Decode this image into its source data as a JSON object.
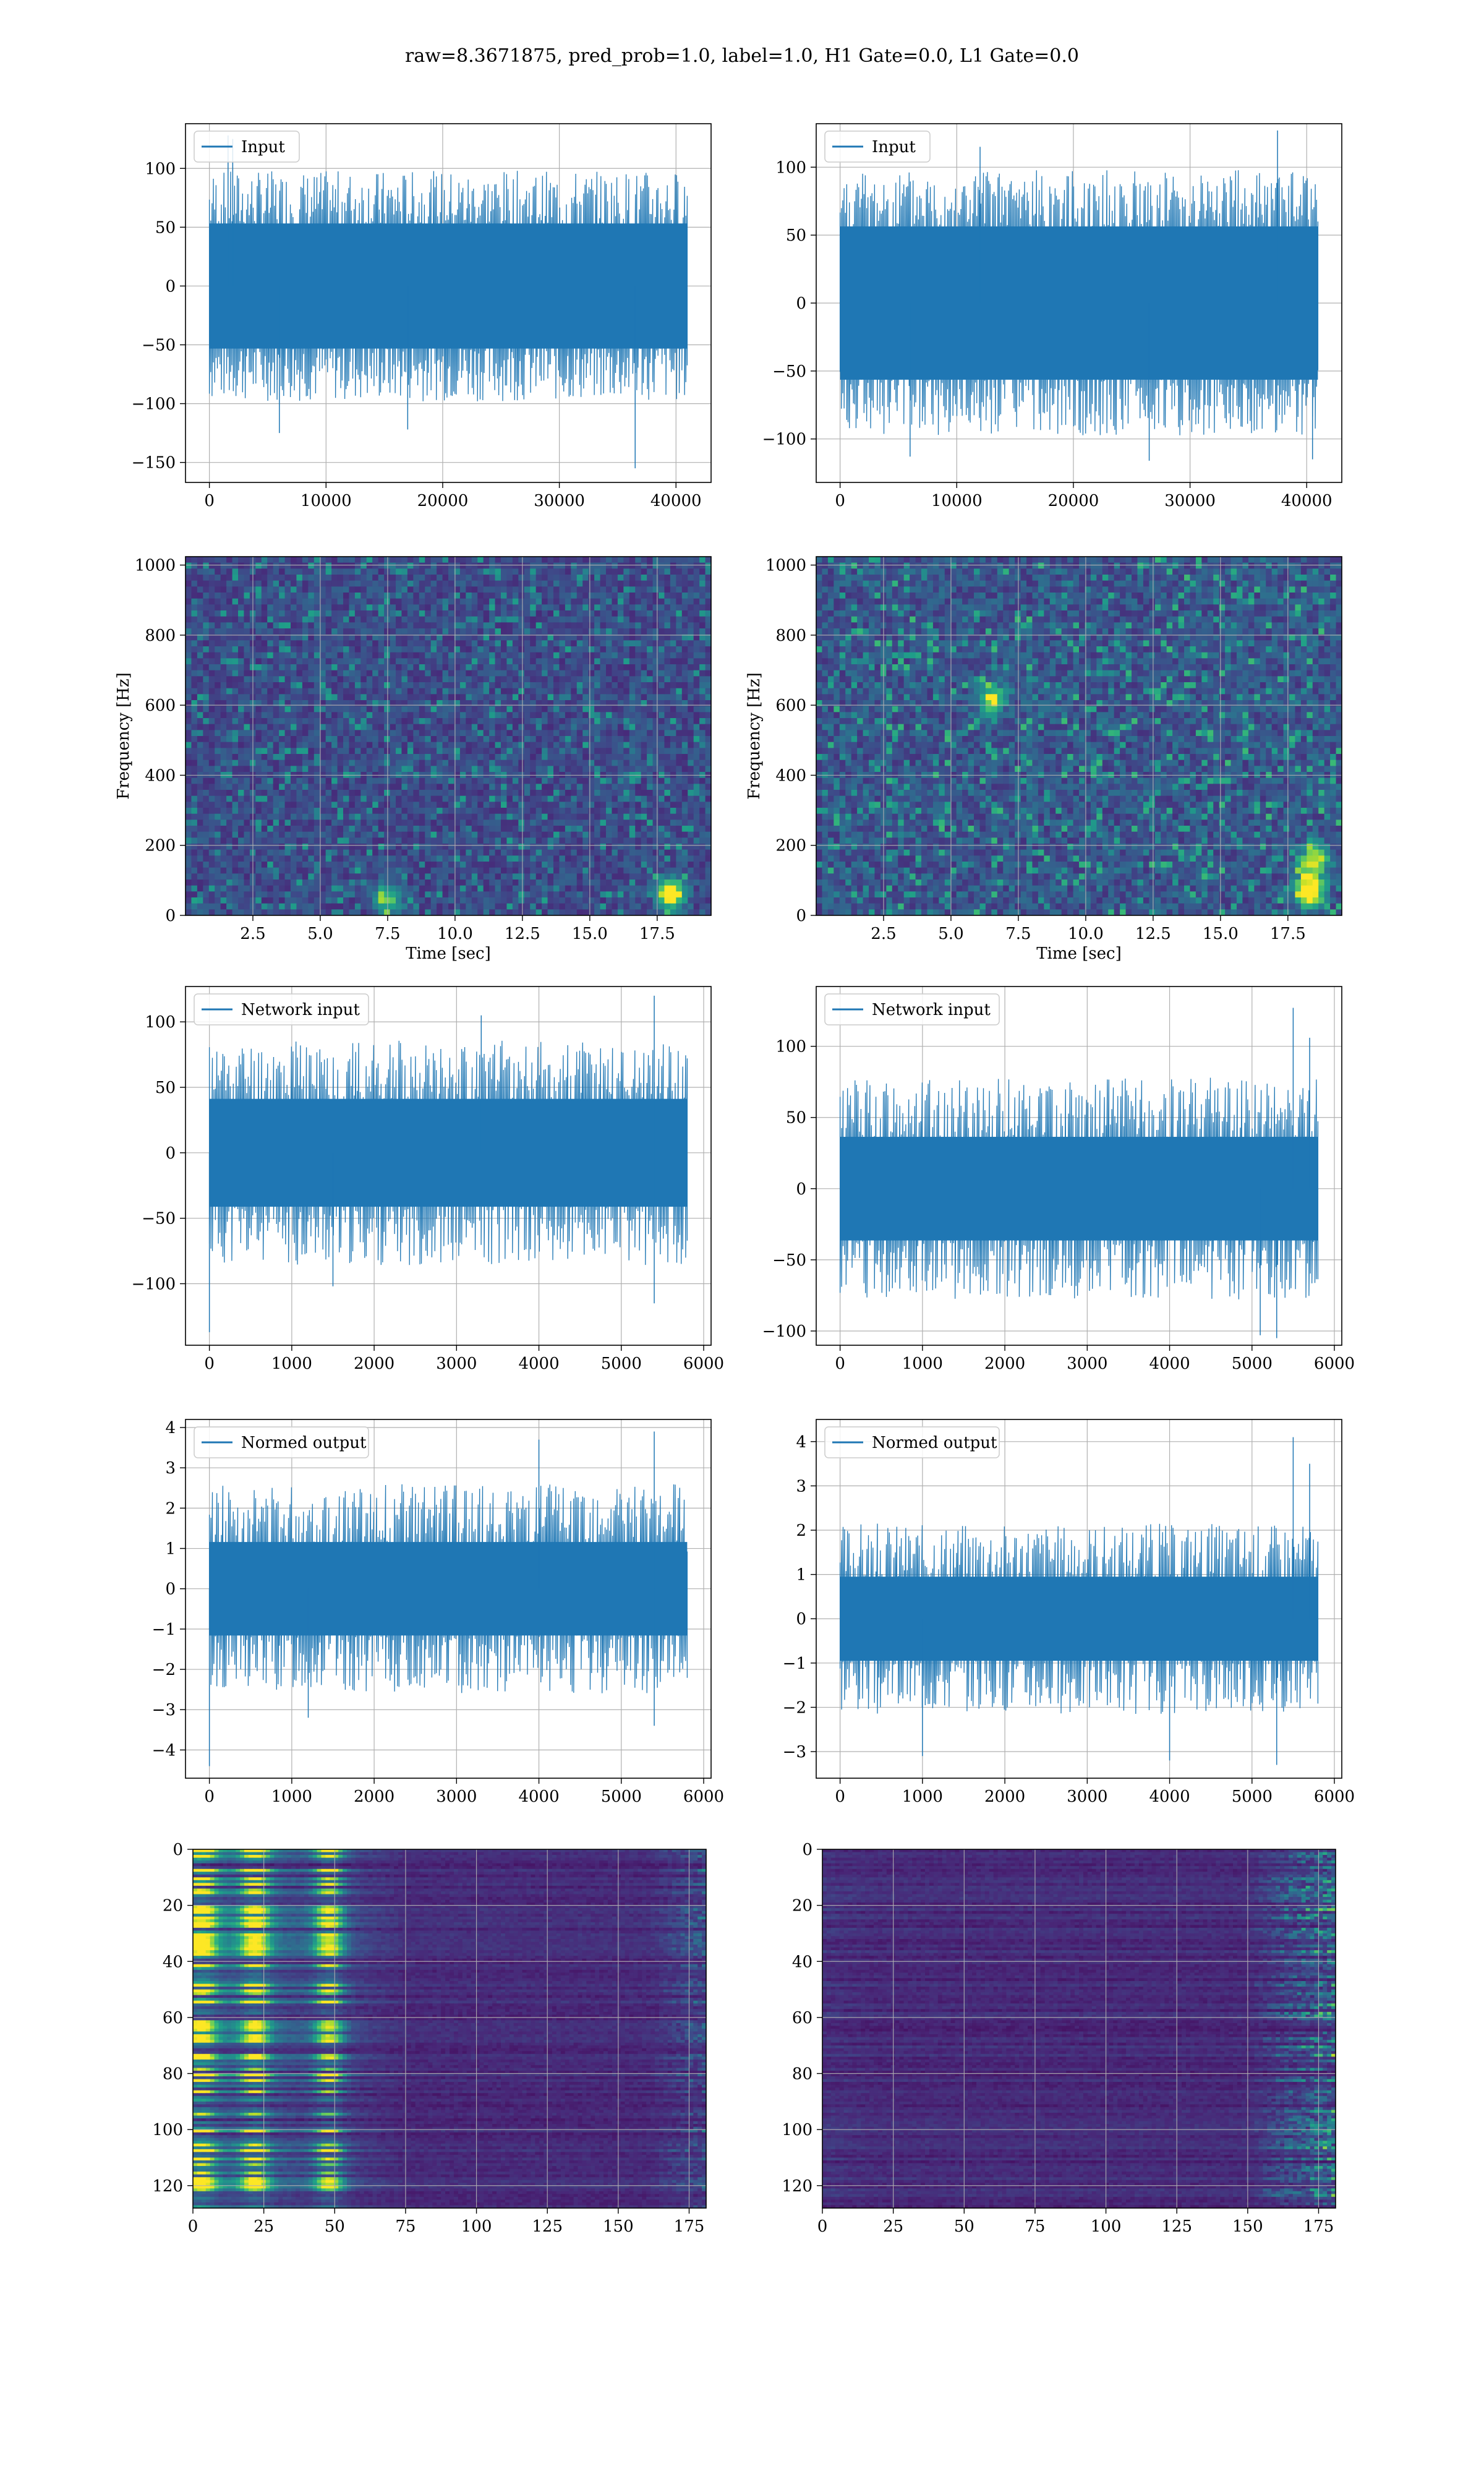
{
  "figure": {
    "suptitle": "raw=8.3671875, pred_prob=1.0, label=1.0, H1 Gate=0.0, L1 Gate=0.0"
  },
  "colors": {
    "line": "#1f77b4",
    "grid": "#b0b0b0",
    "viridis": [
      "#440154",
      "#482878",
      "#3e4a89",
      "#31688e",
      "#26828e",
      "#1f9e89",
      "#35b779",
      "#6ece58",
      "#b5de2b",
      "#fde725"
    ]
  },
  "chart_data": [
    {
      "id": "input-h1",
      "type": "line",
      "legend": "Input",
      "legend_loc": "upper-left",
      "grid": true,
      "x_range": [
        0,
        40960
      ],
      "xlim": [
        -2048,
        43008
      ],
      "ylim": [
        -167,
        138
      ],
      "xticks": [
        0,
        10000,
        20000,
        30000,
        40000
      ],
      "xtick_labels": [
        "0",
        "10000",
        "20000",
        "30000",
        "40000"
      ],
      "yticks": [
        -150,
        -100,
        -50,
        0,
        50,
        100
      ],
      "ytick_labels": [
        "−150",
        "−100",
        "−50",
        "0",
        "50",
        "100"
      ],
      "envelope": {
        "points": 360,
        "base_hi": 70,
        "base_lo": -70,
        "jitter": 28,
        "spikes_hi": [
          [
            1600,
            128
          ],
          [
            2000,
            125
          ]
        ],
        "spikes_lo": [
          [
            36500,
            -155
          ],
          [
            6000,
            -125
          ],
          [
            17000,
            -122
          ]
        ]
      }
    },
    {
      "id": "input-l1",
      "type": "line",
      "legend": "Input",
      "legend_loc": "upper-left",
      "grid": true,
      "x_range": [
        0,
        40960
      ],
      "xlim": [
        -2048,
        43008
      ],
      "ylim": [
        -132,
        132
      ],
      "xticks": [
        0,
        10000,
        20000,
        30000,
        40000
      ],
      "xtick_labels": [
        "0",
        "10000",
        "20000",
        "30000",
        "40000"
      ],
      "yticks": [
        -100,
        -50,
        0,
        50,
        100
      ],
      "ytick_labels": [
        "−100",
        "−50",
        "0",
        "50",
        "100"
      ],
      "envelope": {
        "points": 360,
        "base_hi": 72,
        "base_lo": -72,
        "jitter": 26,
        "spikes_hi": [
          [
            37500,
            127
          ],
          [
            12000,
            115
          ]
        ],
        "spikes_lo": [
          [
            40500,
            -115
          ],
          [
            6000,
            -113
          ],
          [
            26500,
            -116
          ]
        ]
      }
    },
    {
      "id": "spec-h1",
      "type": "heatmap",
      "colormap": "viridis",
      "grid": true,
      "xlabel": "Time [sec]",
      "ylabel": "Frequency [Hz]",
      "xlim": [
        0,
        19.5
      ],
      "ylim": [
        0,
        1024
      ],
      "xticks": [
        2.5,
        5.0,
        7.5,
        10.0,
        12.5,
        15.0,
        17.5
      ],
      "xtick_labels": [
        "2.5",
        "5.0",
        "7.5",
        "10.0",
        "12.5",
        "15.0",
        "17.5"
      ],
      "yticks": [
        0,
        200,
        400,
        600,
        800,
        1000
      ],
      "ytick_labels": [
        "0",
        "200",
        "400",
        "600",
        "800",
        "1000"
      ],
      "texture": {
        "cols": 90,
        "rows": 60,
        "base": 0.12,
        "noise": 0.28,
        "seed": 3,
        "hot": [
          [
            18.0,
            60,
            0.85
          ],
          [
            7.5,
            45,
            0.5
          ]
        ]
      }
    },
    {
      "id": "spec-l1",
      "type": "heatmap",
      "colormap": "viridis",
      "grid": true,
      "xlabel": "Time [sec]",
      "ylabel": "Frequency [Hz]",
      "xlim": [
        0,
        19.5
      ],
      "ylim": [
        0,
        1024
      ],
      "xticks": [
        2.5,
        5.0,
        7.5,
        10.0,
        12.5,
        15.0,
        17.5
      ],
      "xtick_labels": [
        "2.5",
        "5.0",
        "7.5",
        "10.0",
        "12.5",
        "15.0",
        "17.5"
      ],
      "yticks": [
        0,
        200,
        400,
        600,
        800,
        1000
      ],
      "ytick_labels": [
        "0",
        "200",
        "400",
        "600",
        "800",
        "1000"
      ],
      "texture": {
        "cols": 90,
        "rows": 60,
        "base": 0.14,
        "noise": 0.34,
        "seed": 11,
        "hot": [
          [
            18.3,
            70,
            0.95
          ],
          [
            18.5,
            160,
            0.7
          ],
          [
            6.5,
            620,
            0.55
          ]
        ]
      }
    },
    {
      "id": "net-h1",
      "type": "line",
      "legend": "Network input",
      "legend_loc": "upper-left",
      "grid": true,
      "x_range": [
        0,
        5800
      ],
      "xlim": [
        -290,
        6090
      ],
      "ylim": [
        -147,
        127
      ],
      "xticks": [
        0,
        1000,
        2000,
        3000,
        4000,
        5000,
        6000
      ],
      "xtick_labels": [
        "0",
        "1000",
        "2000",
        "3000",
        "4000",
        "5000",
        "6000"
      ],
      "yticks": [
        -100,
        -50,
        0,
        50,
        100
      ],
      "ytick_labels": [
        "−100",
        "−50",
        "0",
        "50",
        "100"
      ],
      "envelope": {
        "points": 320,
        "base_hi": 58,
        "base_lo": -58,
        "jitter": 28,
        "spikes_hi": [
          [
            5400,
            120
          ],
          [
            3300,
            105
          ]
        ],
        "spikes_lo": [
          [
            0,
            -137
          ],
          [
            5400,
            -115
          ],
          [
            1500,
            -102
          ]
        ]
      }
    },
    {
      "id": "net-l1",
      "type": "line",
      "legend": "Network input",
      "legend_loc": "upper-left",
      "grid": true,
      "x_range": [
        0,
        5800
      ],
      "xlim": [
        -290,
        6090
      ],
      "ylim": [
        -110,
        142
      ],
      "xticks": [
        0,
        1000,
        2000,
        3000,
        4000,
        5000,
        6000
      ],
      "xtick_labels": [
        "0",
        "1000",
        "2000",
        "3000",
        "4000",
        "5000",
        "6000"
      ],
      "yticks": [
        -100,
        -50,
        0,
        50,
        100
      ],
      "ytick_labels": [
        "−100",
        "−50",
        "0",
        "50",
        "100"
      ],
      "envelope": {
        "points": 320,
        "base_hi": 52,
        "base_lo": -52,
        "jitter": 26,
        "spikes_hi": [
          [
            5500,
            127
          ],
          [
            5700,
            106
          ]
        ],
        "spikes_lo": [
          [
            5300,
            -105
          ],
          [
            5100,
            -103
          ]
        ]
      }
    },
    {
      "id": "norm-h1",
      "type": "line",
      "legend": "Normed output",
      "legend_loc": "upper-left",
      "grid": true,
      "x_range": [
        0,
        5800
      ],
      "xlim": [
        -290,
        6090
      ],
      "ylim": [
        -4.7,
        4.2
      ],
      "xticks": [
        0,
        1000,
        2000,
        3000,
        4000,
        5000,
        6000
      ],
      "xtick_labels": [
        "0",
        "1000",
        "2000",
        "3000",
        "4000",
        "5000",
        "6000"
      ],
      "yticks": [
        -4,
        -3,
        -2,
        -1,
        0,
        1,
        2,
        3,
        4
      ],
      "ytick_labels": [
        "−4",
        "−3",
        "−2",
        "−1",
        "0",
        "1",
        "2",
        "3",
        "4"
      ],
      "envelope": {
        "points": 320,
        "base_hi": 1.7,
        "base_lo": -1.7,
        "jitter": 0.9,
        "spikes_hi": [
          [
            5400,
            3.9
          ],
          [
            4000,
            3.7
          ]
        ],
        "spikes_lo": [
          [
            0,
            -4.4
          ],
          [
            5400,
            -3.4
          ],
          [
            1200,
            -3.2
          ]
        ]
      }
    },
    {
      "id": "norm-l1",
      "type": "line",
      "legend": "Normed output",
      "legend_loc": "upper-left",
      "grid": true,
      "x_range": [
        0,
        5800
      ],
      "xlim": [
        -290,
        6090
      ],
      "ylim": [
        -3.6,
        4.5
      ],
      "xticks": [
        0,
        1000,
        2000,
        3000,
        4000,
        5000,
        6000
      ],
      "xtick_labels": [
        "0",
        "1000",
        "2000",
        "3000",
        "4000",
        "5000",
        "6000"
      ],
      "yticks": [
        -3,
        -2,
        -1,
        0,
        1,
        2,
        3,
        4
      ],
      "ytick_labels": [
        "−3",
        "−2",
        "−1",
        "0",
        "1",
        "2",
        "3",
        "4"
      ],
      "envelope": {
        "points": 320,
        "base_hi": 1.4,
        "base_lo": -1.4,
        "jitter": 0.75,
        "spikes_hi": [
          [
            5500,
            4.1
          ],
          [
            5700,
            3.5
          ]
        ],
        "spikes_lo": [
          [
            5300,
            -3.3
          ],
          [
            1000,
            -3.1
          ],
          [
            4000,
            -3.2
          ]
        ]
      }
    },
    {
      "id": "feat-h1",
      "type": "heatmap",
      "colormap": "viridis",
      "grid": true,
      "xlim": [
        0,
        181
      ],
      "ylim": [
        128,
        0
      ],
      "xticks": [
        0,
        25,
        50,
        75,
        100,
        125,
        150,
        175
      ],
      "xtick_labels": [
        "0",
        "25",
        "50",
        "75",
        "100",
        "125",
        "150",
        "175"
      ],
      "yticks": [
        0,
        20,
        40,
        60,
        80,
        100,
        120
      ],
      "ytick_labels": [
        "0",
        "20",
        "40",
        "60",
        "80",
        "100",
        "120"
      ],
      "bands": {
        "cols": 120,
        "rows": 128,
        "seed": 5,
        "left_strength": 0.9,
        "right_strength": 0.35,
        "hot_x": [
          3,
          22,
          48
        ],
        "fade_x": 75,
        "right_x": 160
      }
    },
    {
      "id": "feat-l1",
      "type": "heatmap",
      "colormap": "viridis",
      "grid": true,
      "xlim": [
        0,
        181
      ],
      "ylim": [
        128,
        0
      ],
      "xticks": [
        0,
        25,
        50,
        75,
        100,
        125,
        150,
        175
      ],
      "xtick_labels": [
        "0",
        "25",
        "50",
        "75",
        "100",
        "125",
        "150",
        "175"
      ],
      "yticks": [
        0,
        20,
        40,
        60,
        80,
        100,
        120
      ],
      "ytick_labels": [
        "0",
        "20",
        "40",
        "60",
        "80",
        "100",
        "120"
      ],
      "bands": {
        "cols": 120,
        "rows": 128,
        "seed": 9,
        "left_strength": 0.08,
        "right_strength": 0.8,
        "hot_x": [],
        "fade_x": 20,
        "right_x": 150
      }
    }
  ]
}
